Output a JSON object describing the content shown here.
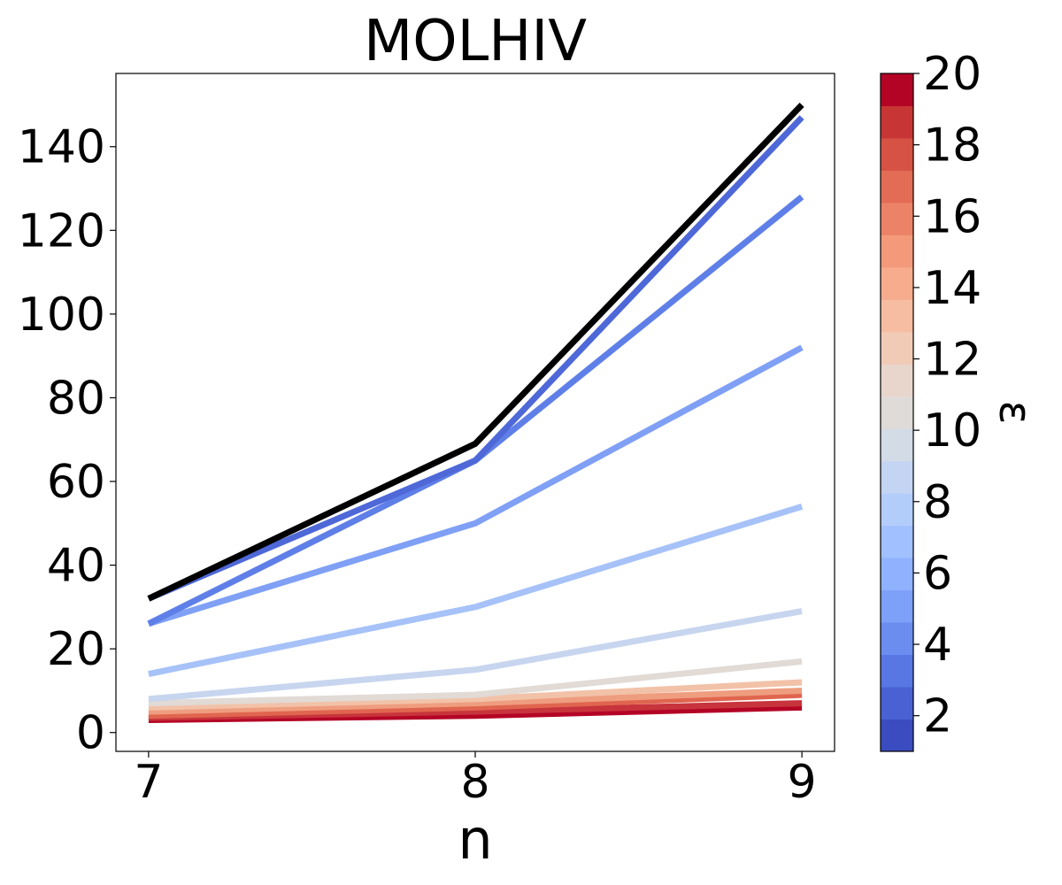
{
  "chart_data": {
    "type": "line",
    "title": "MOLHIV",
    "xlabel": "n",
    "ylabel": "",
    "x": [
      7,
      8,
      9
    ],
    "xticks": [
      "7",
      "8",
      "9"
    ],
    "xlim": [
      6.9,
      9.1
    ],
    "ylim": [
      -4.5,
      157.5
    ],
    "yticks": [
      "0",
      "20",
      "40",
      "60",
      "80",
      "100",
      "120",
      "140"
    ],
    "grid": false,
    "series": [
      {
        "color": "#000000",
        "values": [
          32,
          69,
          150
        ]
      },
      {
        "color": "#4e68d8",
        "values": [
          32,
          65,
          147
        ]
      },
      {
        "color": "#5f7fe8",
        "values": [
          26,
          65,
          128
        ]
      },
      {
        "color": "#7fa0f5",
        "values": [
          26,
          50,
          92
        ]
      },
      {
        "color": "#a6c2f8",
        "values": [
          14,
          30,
          54
        ]
      },
      {
        "color": "#c7d5ef",
        "values": [
          8,
          15,
          29
        ]
      },
      {
        "color": "#e1dad5",
        "values": [
          7,
          9,
          17
        ]
      },
      {
        "color": "#f2c2a8",
        "values": [
          6,
          8,
          12
        ]
      },
      {
        "color": "#ef9d7f",
        "values": [
          5,
          7,
          10
        ]
      },
      {
        "color": "#e0654f",
        "values": [
          4,
          6,
          9
        ]
      },
      {
        "color": "#c8343c",
        "values": [
          3.5,
          5,
          7
        ]
      },
      {
        "color": "#b40426",
        "values": [
          3,
          4,
          6
        ]
      }
    ],
    "colorbar": {
      "label": "ε",
      "min": 1,
      "max": 20,
      "ticks": [
        "2",
        "4",
        "6",
        "8",
        "10",
        "12",
        "14",
        "16",
        "18",
        "20"
      ],
      "colors": [
        "#3b4cc0",
        "#4961d2",
        "#5977e3",
        "#6b8df0",
        "#7da0f9",
        "#8fb1fe",
        "#a1c0ff",
        "#b3cdfb",
        "#c4d5f3",
        "#d3dbe7",
        "#dfdbd9",
        "#e8d6cc",
        "#f2cbb7",
        "#f6bda2",
        "#f7ac8e",
        "#f49a7b",
        "#ed8366",
        "#e36c55",
        "#d65244",
        "#c73635",
        "#b40426"
      ]
    }
  }
}
